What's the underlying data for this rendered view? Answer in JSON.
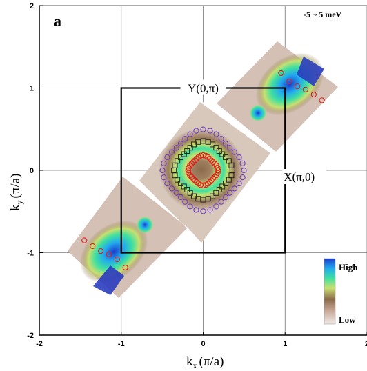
{
  "chart_data": {
    "type": "scatter",
    "panel_label": "a",
    "energy_window": "-5 ~ 5 meV",
    "xlabel_main": "k",
    "xlabel_sub": "x",
    "xlabel_unit": "(π/a)",
    "ylabel_main": "k",
    "ylabel_sub": "y",
    "ylabel_unit": "(π/a)",
    "xlim": [
      -2,
      2
    ],
    "ylim": [
      -2,
      2
    ],
    "xticks": [
      "-2",
      "-1",
      "0",
      "1",
      "2"
    ],
    "yticks": [
      "-2",
      "-1",
      "0",
      "1",
      "2"
    ],
    "grid": true,
    "brillouin_zone": {
      "x": [
        -1,
        1
      ],
      "y": [
        -1,
        1
      ]
    },
    "point_labels": [
      {
        "text": "Y(0,π)",
        "x": 0,
        "y": 1
      },
      {
        "text": "X(π,0)",
        "x": 1,
        "y": 0
      }
    ],
    "colorbar": {
      "high": "High",
      "low": "Low",
      "colors": [
        "#1a3ccc",
        "#22aaee",
        "#3fe0a0",
        "#c8e070",
        "#8b6a4a",
        "#c8aa98",
        "#f2ecea"
      ]
    },
    "series": [
      {
        "marker": "circle",
        "color": "#7040c0",
        "shape": "outer pocket",
        "center": [
          0,
          0
        ],
        "radius": 0.46
      },
      {
        "marker": "square",
        "color": "#222222",
        "shape": "middle pocket",
        "center": [
          0,
          0
        ],
        "radius": 0.33
      },
      {
        "marker": "circle",
        "color": "#e02020",
        "shape": "inner pocket",
        "center": [
          0,
          0
        ],
        "radius": 0.17
      },
      {
        "marker": "circle",
        "color": "#e02020",
        "shape": "corner band (M)",
        "points": [
          [
            0.95,
            1.18
          ],
          [
            1.05,
            1.08
          ],
          [
            1.15,
            1.02
          ],
          [
            1.25,
            0.98
          ],
          [
            1.35,
            0.92
          ],
          [
            1.45,
            0.85
          ]
        ]
      },
      {
        "marker": "circle",
        "color": "#e02020",
        "shape": "corner band (-M)",
        "points": [
          [
            -0.95,
            -1.18
          ],
          [
            -1.05,
            -1.08
          ],
          [
            -1.15,
            -1.02
          ],
          [
            -1.25,
            -0.98
          ],
          [
            -1.35,
            -0.92
          ],
          [
            -1.45,
            -0.85
          ]
        ]
      }
    ]
  }
}
